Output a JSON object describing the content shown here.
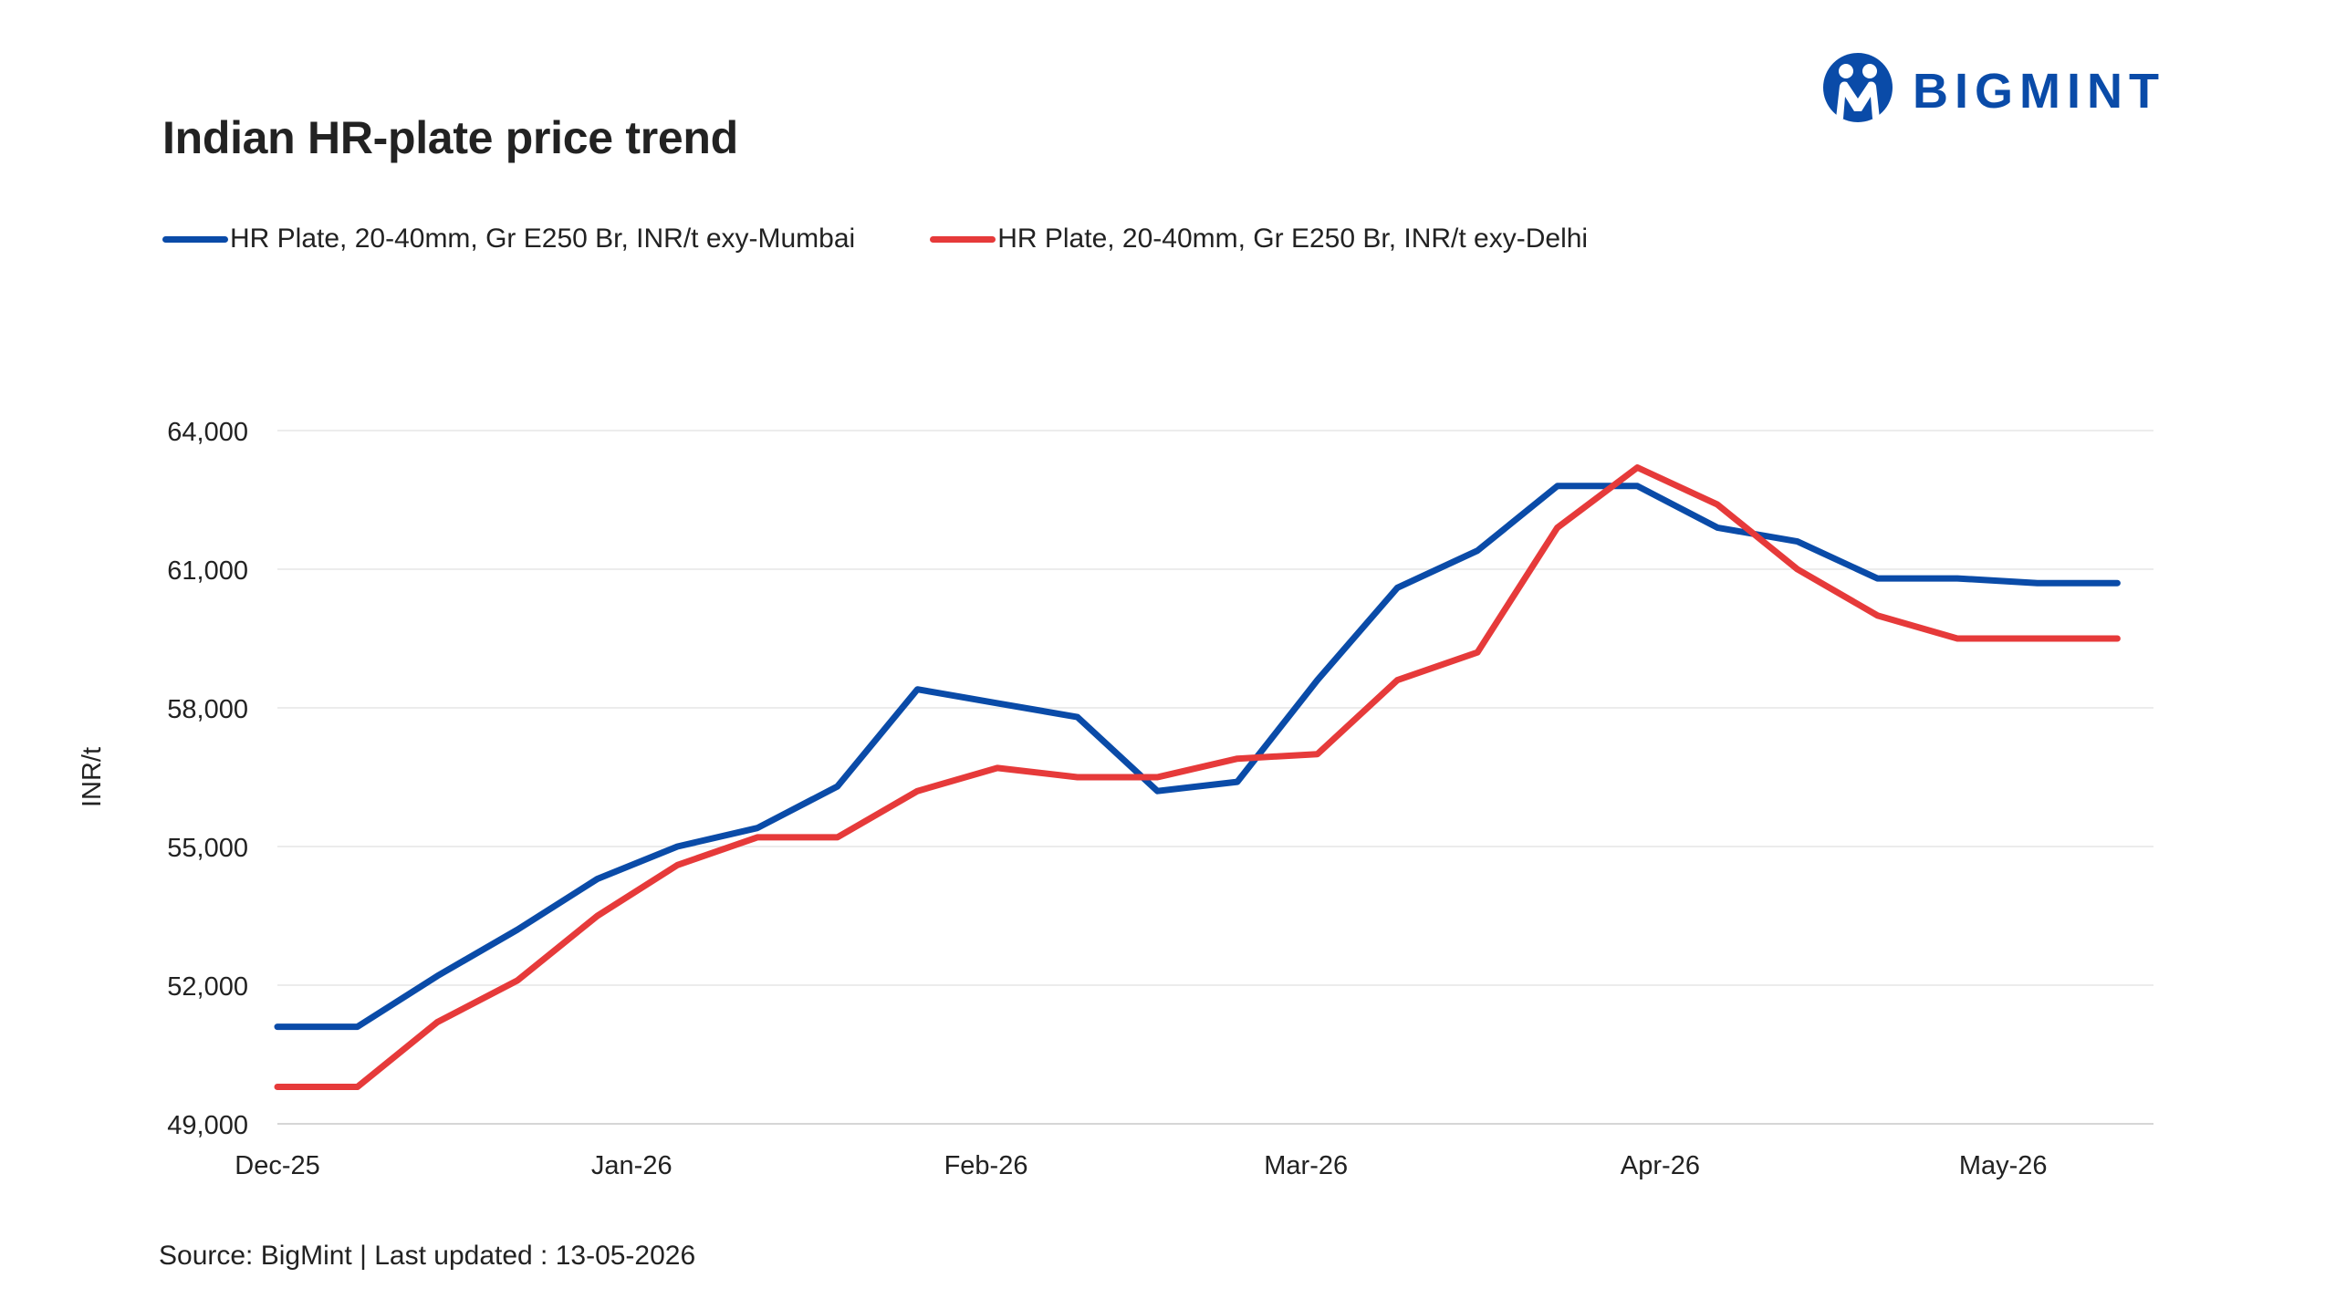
{
  "brand": {
    "name": "BIGMINT",
    "color": "#0a4ba8"
  },
  "header": {
    "title": "Indian HR-plate price trend"
  },
  "footer": {
    "source": "Source: BigMint | Last updated : 13-05-2026"
  },
  "chart_data": {
    "type": "line",
    "title": "Indian HR-plate price trend",
    "xlabel": "",
    "ylabel": "INR/t",
    "ylim": [
      49000,
      64000
    ],
    "y_ticks": [
      49000,
      52000,
      55000,
      58000,
      61000,
      64000
    ],
    "y_tick_labels": [
      "49,000",
      "52,000",
      "55,000",
      "58,000",
      "61,000",
      "64,000"
    ],
    "x_tick_labels": [
      "Dec-25",
      "Jan-26",
      "Feb-26",
      "Mar-26",
      "Apr-26",
      "May-26"
    ],
    "x": [
      "2025-12-01",
      "2025-12-08",
      "2025-12-15",
      "2025-12-22",
      "2025-12-29",
      "2026-01-05",
      "2026-01-12",
      "2026-01-19",
      "2026-01-26",
      "2026-02-02",
      "2026-02-09",
      "2026-02-16",
      "2026-02-23",
      "2026-03-02",
      "2026-03-09",
      "2026-03-16",
      "2026-03-23",
      "2026-03-30",
      "2026-04-06",
      "2026-04-13",
      "2026-04-20",
      "2026-04-27",
      "2026-05-04",
      "2026-05-11"
    ],
    "x_range": [
      "2025-12-01",
      "2026-05-14"
    ],
    "grid": true,
    "legend_position": "top-left",
    "series": [
      {
        "name": "HR Plate, 20-40mm, Gr E250 Br, INR/t exy-Mumbai",
        "color": "#0a4ba8",
        "values": [
          51100,
          51100,
          52200,
          53200,
          54300,
          55000,
          55400,
          56300,
          58400,
          58100,
          57800,
          56200,
          56400,
          58600,
          60600,
          61400,
          62800,
          62800,
          61900,
          61600,
          60800,
          60800,
          60700,
          60700
        ]
      },
      {
        "name": "HR Plate, 20-40mm, Gr E250 Br, INR/t exy-Delhi",
        "color": "#e63a3a",
        "values": [
          49800,
          49800,
          51200,
          52100,
          53500,
          54600,
          55200,
          55200,
          56200,
          56700,
          56500,
          56500,
          56900,
          57000,
          58600,
          59200,
          61900,
          63200,
          62400,
          61000,
          60000,
          59500,
          59500,
          59500
        ]
      }
    ]
  }
}
